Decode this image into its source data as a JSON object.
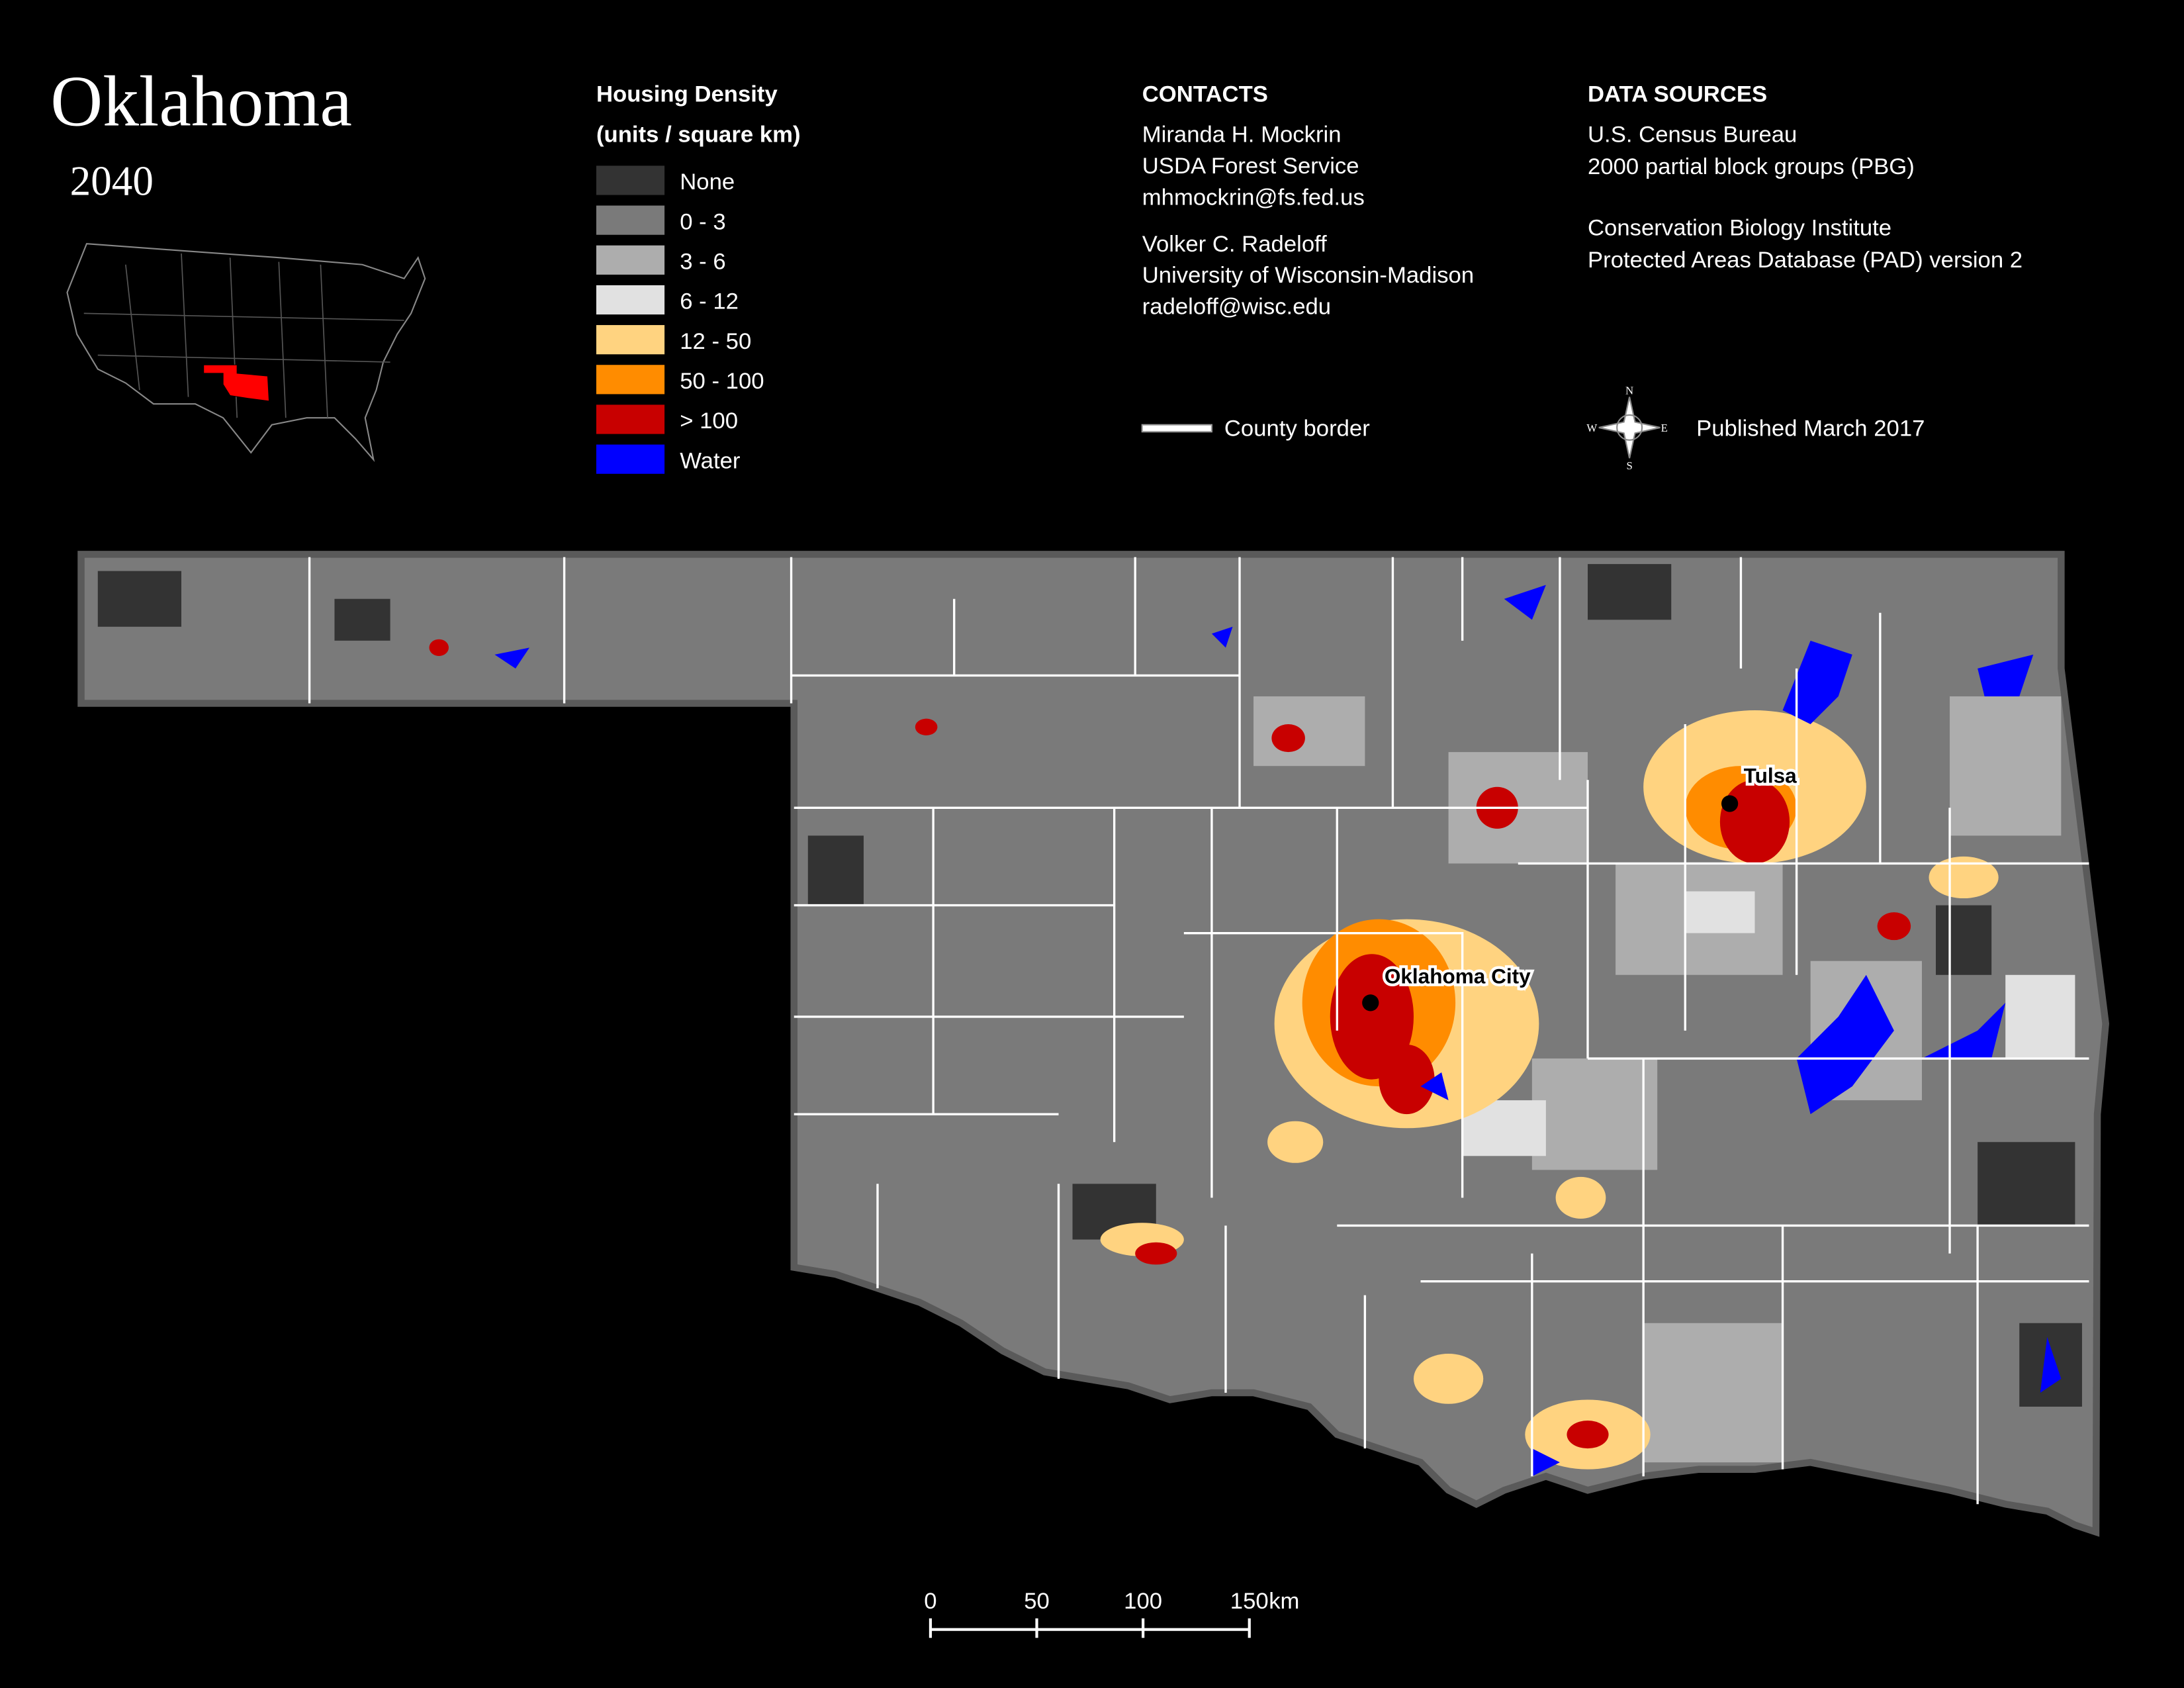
{
  "header": {
    "title": "Oklahoma",
    "subtitle": "2040"
  },
  "legend": {
    "title": "Housing Density",
    "subtitle": "(units / square km)",
    "items": [
      {
        "label": "None",
        "color": "#333333"
      },
      {
        "label": "0 - 3",
        "color": "#7a7a7a"
      },
      {
        "label": "3 - 6",
        "color": "#adadad"
      },
      {
        "label": "6 - 12",
        "color": "#e1e1e1"
      },
      {
        "label": "12 - 50",
        "color": "#ffd380"
      },
      {
        "label": "50 - 100",
        "color": "#ff8c00"
      },
      {
        "label": "> 100",
        "color": "#c80000"
      },
      {
        "label": "Water",
        "color": "#0000ff"
      }
    ]
  },
  "contacts": {
    "title": "CONTACTS",
    "people": [
      [
        "Miranda H. Mockrin",
        "USDA Forest Service",
        "mhmockrin@fs.fed.us"
      ],
      [
        "Volker C. Radeloff",
        "University of Wisconsin-Madison",
        "radeloff@wisc.edu"
      ]
    ],
    "county_border": "County border"
  },
  "data_sources": {
    "title": "DATA SOURCES",
    "groups": [
      [
        "U.S. Census Bureau",
        "2000 partial block groups (PBG)"
      ],
      [
        "Conservation Biology Institute",
        "Protected Areas Database (PAD) version 2"
      ]
    ],
    "published": "Published March 2017"
  },
  "compass": {
    "n": "N",
    "s": "S",
    "e": "E",
    "w": "W"
  },
  "cities": [
    "Tulsa",
    "Oklahoma City"
  ],
  "scale_bar": {
    "ticks": [
      0,
      50,
      100,
      150
    ],
    "unit": "km"
  }
}
